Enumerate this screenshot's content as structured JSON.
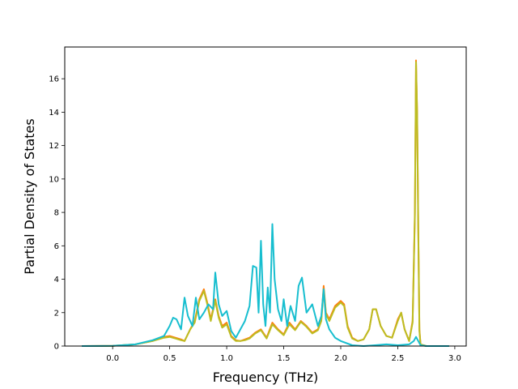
{
  "chart_data": {
    "type": "line",
    "title": "",
    "xlabel": "Frequency (THz)",
    "ylabel": "Partial Density of States",
    "xlim": [
      -0.42,
      3.1
    ],
    "ylim": [
      0,
      17.9
    ],
    "xticks": [
      0.0,
      0.5,
      1.0,
      1.5,
      2.0,
      2.5,
      3.0
    ],
    "xtick_labels": [
      "0.0",
      "0.5",
      "1.0",
      "1.5",
      "2.0",
      "2.5",
      "3.0"
    ],
    "yticks": [
      0,
      2,
      4,
      6,
      8,
      10,
      12,
      14,
      16
    ],
    "ytick_labels": [
      "0",
      "2",
      "4",
      "6",
      "8",
      "10",
      "12",
      "14",
      "16"
    ],
    "grid": false,
    "legend": "none",
    "series": [
      {
        "color": "#ff7f0e",
        "x": [
          -0.27,
          0.0,
          0.2,
          0.35,
          0.45,
          0.5,
          0.55,
          0.6,
          0.63,
          0.68,
          0.72,
          0.76,
          0.8,
          0.83,
          0.86,
          0.9,
          0.93,
          0.96,
          1.0,
          1.04,
          1.08,
          1.12,
          1.16,
          1.2,
          1.25,
          1.3,
          1.35,
          1.4,
          1.45,
          1.5,
          1.55,
          1.6,
          1.65,
          1.7,
          1.75,
          1.8,
          1.83,
          1.85,
          1.87,
          1.9,
          1.95,
          2.0,
          2.03,
          2.06,
          2.1,
          2.15,
          2.2,
          2.25,
          2.28,
          2.31,
          2.35,
          2.4,
          2.45,
          2.5,
          2.53,
          2.56,
          2.6,
          2.63,
          2.65,
          2.66,
          2.67,
          2.68,
          2.69,
          2.7,
          2.75,
          2.95
        ],
        "y": [
          0,
          0.01,
          0.1,
          0.3,
          0.55,
          0.6,
          0.5,
          0.4,
          0.3,
          1.0,
          1.5,
          2.8,
          3.4,
          2.6,
          1.6,
          2.8,
          1.8,
          1.2,
          1.4,
          0.6,
          0.35,
          0.3,
          0.4,
          0.5,
          0.8,
          1.0,
          0.5,
          1.4,
          1.0,
          0.7,
          1.4,
          1.0,
          1.5,
          1.2,
          0.8,
          1.0,
          1.6,
          3.6,
          2.0,
          1.6,
          2.4,
          2.7,
          2.5,
          1.2,
          0.5,
          0.3,
          0.4,
          1.0,
          2.2,
          2.2,
          1.2,
          0.6,
          0.5,
          1.6,
          2.0,
          1.0,
          0.3,
          1.5,
          8.0,
          17.1,
          14.0,
          7.0,
          1.0,
          0.1,
          0,
          0
        ]
      },
      {
        "color": "#bcbd22",
        "x": [
          -0.27,
          0.0,
          0.2,
          0.35,
          0.45,
          0.5,
          0.55,
          0.6,
          0.63,
          0.68,
          0.72,
          0.76,
          0.8,
          0.83,
          0.86,
          0.9,
          0.93,
          0.96,
          1.0,
          1.04,
          1.08,
          1.12,
          1.16,
          1.2,
          1.25,
          1.3,
          1.35,
          1.4,
          1.45,
          1.5,
          1.55,
          1.6,
          1.65,
          1.7,
          1.75,
          1.8,
          1.83,
          1.85,
          1.87,
          1.9,
          1.95,
          2.0,
          2.03,
          2.06,
          2.1,
          2.15,
          2.2,
          2.25,
          2.28,
          2.31,
          2.35,
          2.4,
          2.45,
          2.5,
          2.53,
          2.56,
          2.6,
          2.63,
          2.65,
          2.66,
          2.67,
          2.68,
          2.69,
          2.7,
          2.75,
          2.95
        ],
        "y": [
          0,
          0.01,
          0.1,
          0.3,
          0.5,
          0.55,
          0.45,
          0.35,
          0.3,
          1.0,
          1.4,
          2.7,
          3.3,
          2.5,
          1.5,
          2.7,
          1.7,
          1.1,
          1.3,
          0.55,
          0.3,
          0.3,
          0.35,
          0.45,
          0.75,
          0.95,
          0.45,
          1.3,
          0.95,
          0.65,
          1.3,
          0.95,
          1.45,
          1.15,
          0.75,
          0.95,
          1.5,
          3.4,
          1.9,
          1.5,
          2.3,
          2.6,
          2.4,
          1.1,
          0.45,
          0.3,
          0.4,
          1.0,
          2.2,
          2.2,
          1.2,
          0.6,
          0.5,
          1.5,
          2.0,
          1.0,
          0.3,
          1.4,
          7.8,
          17.0,
          13.8,
          6.8,
          0.9,
          0.1,
          0,
          0
        ]
      },
      {
        "color": "#17becf",
        "x": [
          -0.27,
          0.0,
          0.2,
          0.35,
          0.45,
          0.5,
          0.53,
          0.56,
          0.6,
          0.63,
          0.66,
          0.7,
          0.73,
          0.76,
          0.8,
          0.84,
          0.88,
          0.9,
          0.93,
          0.96,
          1.0,
          1.04,
          1.08,
          1.12,
          1.16,
          1.2,
          1.23,
          1.26,
          1.28,
          1.3,
          1.32,
          1.34,
          1.36,
          1.38,
          1.4,
          1.42,
          1.45,
          1.48,
          1.5,
          1.53,
          1.56,
          1.6,
          1.63,
          1.66,
          1.7,
          1.75,
          1.8,
          1.83,
          1.85,
          1.87,
          1.9,
          1.95,
          2.0,
          2.1,
          2.2,
          2.3,
          2.4,
          2.5,
          2.6,
          2.64,
          2.66,
          2.68,
          2.7,
          2.75,
          2.95
        ],
        "y": [
          0,
          0.01,
          0.1,
          0.35,
          0.6,
          1.2,
          1.7,
          1.6,
          1.0,
          2.9,
          1.8,
          1.2,
          2.9,
          1.6,
          2.0,
          2.5,
          2.2,
          4.4,
          2.5,
          1.8,
          2.1,
          0.9,
          0.5,
          1.0,
          1.5,
          2.4,
          4.8,
          4.7,
          2.0,
          6.3,
          2.5,
          1.2,
          3.5,
          2.0,
          7.3,
          4.0,
          2.2,
          1.5,
          2.8,
          1.2,
          2.4,
          1.5,
          3.6,
          4.1,
          2.0,
          2.5,
          1.2,
          1.8,
          3.4,
          1.6,
          1.0,
          0.5,
          0.3,
          0.05,
          0.0,
          0.05,
          0.1,
          0.05,
          0.1,
          0.3,
          0.55,
          0.3,
          0.05,
          0,
          0
        ]
      }
    ]
  }
}
